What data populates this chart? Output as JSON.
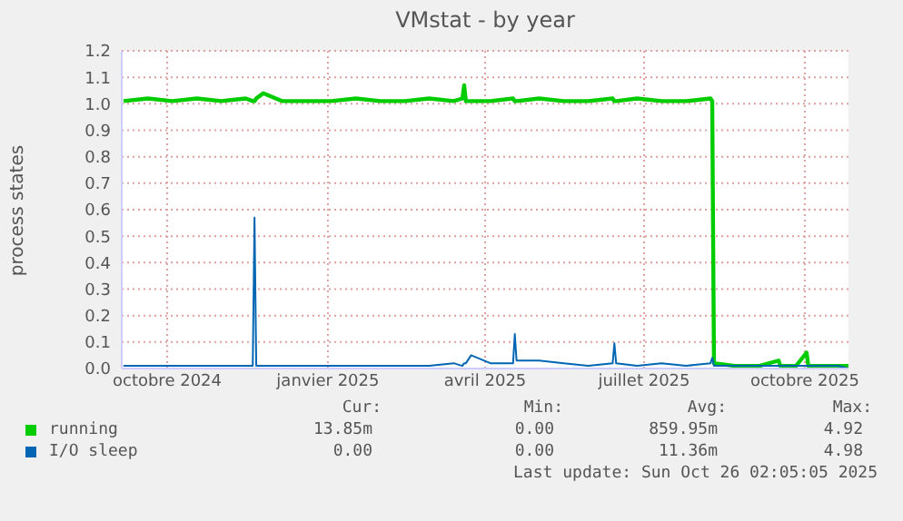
{
  "chart_data": {
    "type": "line",
    "title": "VMstat - by year",
    "ylabel": "process states",
    "x": [
      "2024-09-06",
      "2024-09-20",
      "2024-10-04",
      "2024-10-18",
      "2024-11-01",
      "2024-11-15",
      "2024-11-19",
      "2024-11-20",
      "2024-11-21",
      "2024-11-25",
      "2024-12-06",
      "2024-12-20",
      "2025-01-03",
      "2025-01-17",
      "2025-01-31",
      "2025-02-14",
      "2025-02-28",
      "2025-03-14",
      "2025-03-19",
      "2025-03-20",
      "2025-03-21",
      "2025-03-24",
      "2025-04-04",
      "2025-04-17",
      "2025-04-18",
      "2025-04-19",
      "2025-05-02",
      "2025-05-16",
      "2025-05-30",
      "2025-06-13",
      "2025-06-14",
      "2025-06-15",
      "2025-06-27",
      "2025-07-11",
      "2025-07-25",
      "2025-08-08",
      "2025-08-09",
      "2025-08-10",
      "2025-08-22",
      "2025-09-05",
      "2025-09-16",
      "2025-09-17",
      "2025-09-26",
      "2025-10-02",
      "2025-10-03",
      "2025-10-10",
      "2025-10-20",
      "2025-10-26"
    ],
    "series": [
      {
        "name": "running",
        "color": "#00cc00",
        "values": [
          1.01,
          1.02,
          1.01,
          1.02,
          1.01,
          1.02,
          1.01,
          1.01,
          1.02,
          1.04,
          1.01,
          1.01,
          1.01,
          1.02,
          1.01,
          1.01,
          1.02,
          1.01,
          1.02,
          1.07,
          1.01,
          1.01,
          1.01,
          1.02,
          1.01,
          1.01,
          1.02,
          1.01,
          1.01,
          1.02,
          1.01,
          1.01,
          1.02,
          1.01,
          1.01,
          1.02,
          1.01,
          0.02,
          0.01,
          0.01,
          0.03,
          0.01,
          0.01,
          0.06,
          0.01,
          0.01,
          0.01,
          0.01
        ]
      },
      {
        "name": "I/O sleep",
        "color": "#0066b3",
        "values": [
          0.01,
          0.01,
          0.01,
          0.01,
          0.01,
          0.01,
          0.01,
          0.57,
          0.01,
          0.01,
          0.01,
          0.01,
          0.01,
          0.01,
          0.01,
          0.01,
          0.01,
          0.02,
          0.01,
          0.02,
          0.02,
          0.05,
          0.02,
          0.02,
          0.13,
          0.03,
          0.03,
          0.02,
          0.01,
          0.02,
          0.095,
          0.02,
          0.01,
          0.02,
          0.01,
          0.02,
          0.04,
          0.01,
          0.01,
          0.01,
          0.01,
          0.01,
          0.01,
          0.01,
          0.01,
          0.01,
          0.01,
          0
        ]
      }
    ],
    "xlim": [
      "2024-09-05",
      "2025-10-26"
    ],
    "xticks": [
      {
        "value": "2024-10-01",
        "label": "octobre 2024"
      },
      {
        "value": "2025-01-01",
        "label": "janvier 2025"
      },
      {
        "value": "2025-04-01",
        "label": "avril 2025"
      },
      {
        "value": "2025-07-01",
        "label": "juillet 2025"
      },
      {
        "value": "2025-10-01",
        "label": "octobre 2025"
      }
    ],
    "ylim": [
      0,
      1.2
    ],
    "yticks": [
      {
        "value": 0,
        "label": "0.0"
      },
      0.1,
      0.2,
      0.3,
      0.4,
      0.5,
      0.6,
      0.7,
      0.8,
      0.9,
      {
        "value": 1,
        "label": "1.0"
      },
      1.1,
      1.2
    ],
    "grid": true,
    "legend": "bottom",
    "annotations": [
      "Cur:",
      "Min:",
      "Avg:",
      "Max:",
      "13.85m",
      "0.00",
      "859.95m",
      "4.92",
      "0.00",
      "0.00",
      "11.36m",
      "4.98",
      "Last update: Sun Oct 26 02:05:05 2025"
    ]
  }
}
